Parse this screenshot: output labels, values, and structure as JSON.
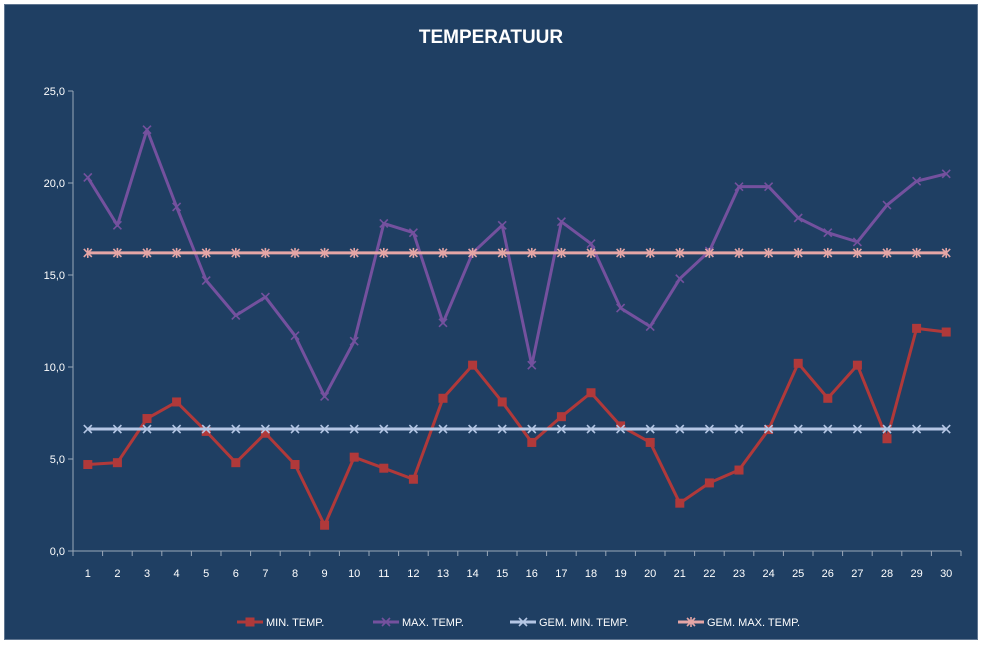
{
  "chart_data": {
    "type": "line",
    "title": "TEMPERATUUR",
    "xlabel": "",
    "ylabel": "",
    "x": [
      1,
      2,
      3,
      4,
      5,
      6,
      7,
      8,
      9,
      10,
      11,
      12,
      13,
      14,
      15,
      16,
      17,
      18,
      19,
      20,
      21,
      22,
      23,
      24,
      25,
      26,
      27,
      28,
      29,
      30
    ],
    "ylim": [
      0,
      25
    ],
    "yticks": [
      "0,0",
      "5,0",
      "10,0",
      "15,0",
      "20,0",
      "25,0"
    ],
    "ytick_values": [
      0,
      5,
      10,
      15,
      20,
      25
    ],
    "grid": false,
    "legend_position": "bottom",
    "background": "#1f3f63",
    "series": [
      {
        "name": "MIN. TEMP.",
        "color": "#b0393a",
        "marker": "square",
        "values": [
          4.7,
          4.8,
          7.2,
          8.1,
          6.5,
          4.8,
          6.4,
          4.7,
          1.4,
          5.1,
          4.5,
          3.9,
          8.3,
          10.1,
          8.1,
          5.9,
          7.3,
          8.6,
          6.8,
          5.9,
          2.6,
          3.7,
          4.4,
          6.6,
          10.2,
          8.3,
          10.1,
          6.1,
          12.1,
          11.9
        ]
      },
      {
        "name": "MAX. TEMP.",
        "color": "#74519e",
        "marker": "x",
        "values": [
          20.3,
          17.7,
          22.9,
          18.7,
          14.7,
          12.8,
          13.8,
          11.7,
          8.4,
          11.4,
          17.8,
          17.3,
          12.4,
          16.2,
          17.7,
          10.1,
          17.9,
          16.7,
          13.2,
          12.2,
          14.8,
          16.3,
          19.8,
          19.8,
          18.1,
          17.3,
          16.8,
          18.8,
          20.1,
          20.5
        ]
      },
      {
        "name": "GEM. MIN. TEMP.",
        "color": "#b4c6e4",
        "marker": "x",
        "values": [
          6.63,
          6.63,
          6.63,
          6.63,
          6.63,
          6.63,
          6.63,
          6.63,
          6.63,
          6.63,
          6.63,
          6.63,
          6.63,
          6.63,
          6.63,
          6.63,
          6.63,
          6.63,
          6.63,
          6.63,
          6.63,
          6.63,
          6.63,
          6.63,
          6.63,
          6.63,
          6.63,
          6.63,
          6.63,
          6.63
        ]
      },
      {
        "name": "GEM. MAX. TEMP.",
        "color": "#e5a6a6",
        "marker": "star",
        "values": [
          16.2,
          16.2,
          16.2,
          16.2,
          16.2,
          16.2,
          16.2,
          16.2,
          16.2,
          16.2,
          16.2,
          16.2,
          16.2,
          16.2,
          16.2,
          16.2,
          16.2,
          16.2,
          16.2,
          16.2,
          16.2,
          16.2,
          16.2,
          16.2,
          16.2,
          16.2,
          16.2,
          16.2,
          16.2,
          16.2
        ]
      }
    ]
  }
}
